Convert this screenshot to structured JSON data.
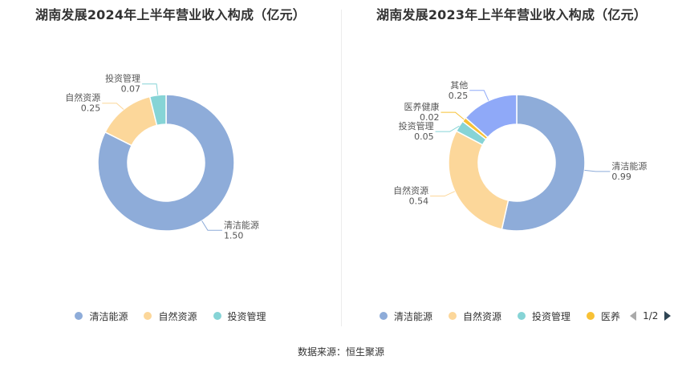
{
  "footer": {
    "source": "数据来源：恒生聚源"
  },
  "chart_data": [
    {
      "type": "pie",
      "title": "湖南发展2024年上半年营业收入构成（亿元）",
      "slices": [
        {
          "name": "清洁能源",
          "value": 1.5,
          "value_label": "1.50",
          "color": "#8eacd9"
        },
        {
          "name": "自然资源",
          "value": 0.25,
          "value_label": "0.25",
          "color": "#fcd79a"
        },
        {
          "name": "投资管理",
          "value": 0.07,
          "value_label": "0.07",
          "color": "#86d4d6"
        }
      ],
      "legend": {
        "position": "bottom",
        "items": [
          "清洁能源",
          "自然资源",
          "投资管理"
        ]
      }
    },
    {
      "type": "pie",
      "title": "湖南发展2023年上半年营业收入构成（亿元）",
      "slices": [
        {
          "name": "清洁能源",
          "value": 0.99,
          "value_label": "0.99",
          "color": "#8eacd9"
        },
        {
          "name": "自然资源",
          "value": 0.54,
          "value_label": "0.54",
          "color": "#fcd79a"
        },
        {
          "name": "投资管理",
          "value": 0.05,
          "value_label": "0.05",
          "color": "#86d4d6"
        },
        {
          "name": "医养健康",
          "value": 0.02,
          "value_label": "0.02",
          "color": "#f8c135"
        },
        {
          "name": "其他",
          "value": 0.25,
          "value_label": "0.25",
          "color": "#8fa9f8"
        }
      ],
      "legend": {
        "position": "bottom",
        "items": [
          "清洁能源",
          "自然资源",
          "投资管理",
          "医养"
        ],
        "page": "1/2"
      }
    }
  ]
}
